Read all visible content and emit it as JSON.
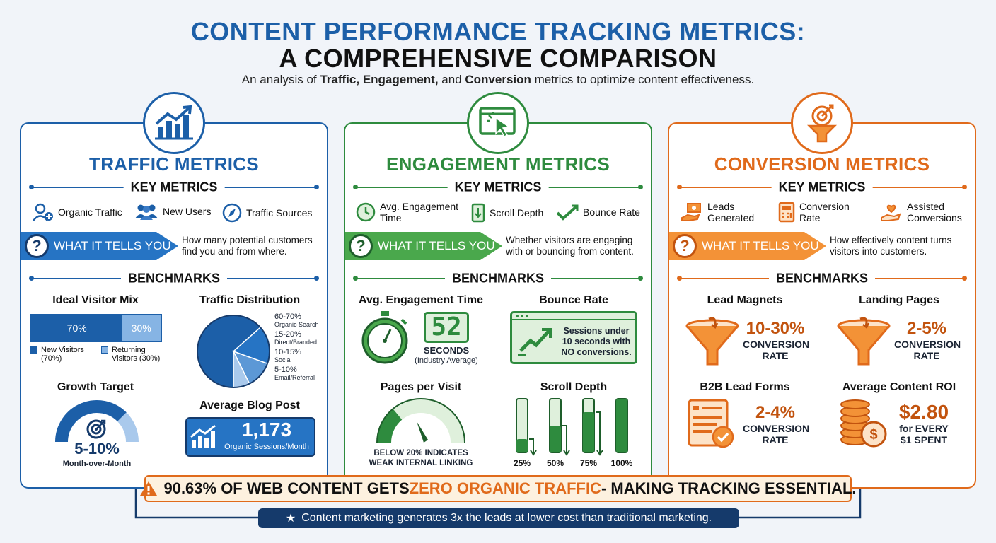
{
  "header": {
    "title_line1": "CONTENT PERFORMANCE TRACKING METRICS:",
    "title_line2": "A COMPREHENSIVE COMPARISON",
    "subtitle_pre": "An analysis of ",
    "subtitle_b1": "Traffic,",
    "subtitle_b2": "Engagement,",
    "subtitle_mid": " and ",
    "subtitle_b3": "Conversion",
    "subtitle_post": " metrics to optimize content effectiveness."
  },
  "colors": {
    "blue": "#1c5fa8",
    "green": "#2e8b3e",
    "orange": "#e06a1b",
    "navy": "#153a6b"
  },
  "traffic": {
    "title": "TRAFFIC METRICS",
    "key_metrics_label": "KEY METRICS",
    "metrics": [
      "Organic Traffic",
      "New Users",
      "Traffic Sources"
    ],
    "icons": [
      "user-plus-icon",
      "users-icon",
      "compass-icon"
    ],
    "what_label": "WHAT IT TELLS YOU",
    "what_text": "How many potential customers find you and from where.",
    "benchmarks_label": "BENCHMARKS",
    "visitor_mix": {
      "title": "Ideal Visitor Mix",
      "new_value": "70%",
      "returning_value": "30%",
      "new_fraction": 0.7,
      "legend_new": "New Visitors (70%)",
      "legend_returning": "Returning Visitors (30%)"
    },
    "distribution": {
      "title": "Traffic Distribution",
      "slices": [
        {
          "pct": "60-70%",
          "label": "Organic Search",
          "value": 65
        },
        {
          "pct": "15-20%",
          "label": "Direct/Branded",
          "value": 17.5
        },
        {
          "pct": "10-15%",
          "label": "Social",
          "value": 12.5
        },
        {
          "pct": "5-10%",
          "label": "Email/Referral",
          "value": 7.5
        }
      ]
    },
    "growth": {
      "title": "Growth Target",
      "value": "5-10%",
      "caption": "Month-over-Month",
      "fill_fraction": 0.75
    },
    "blog": {
      "title": "Average Blog Post",
      "value": "1,173",
      "caption": "Organic Sessions/Month"
    }
  },
  "engagement": {
    "title": "ENGAGEMENT METRICS",
    "key_metrics_label": "KEY METRICS",
    "metrics": [
      "Avg. Engagement Time",
      "Scroll Depth",
      "Bounce Rate"
    ],
    "icons": [
      "clock-icon",
      "scroll-icon",
      "check-trend-icon"
    ],
    "what_label": "WHAT IT TELLS YOU",
    "what_text": "Whether visitors are engaging with or bouncing from content.",
    "benchmarks_label": "BENCHMARKS",
    "eng_time": {
      "title": "Avg. Engagement Time",
      "value": "52",
      "unit": "SECONDS",
      "caption": "(Industry Average)"
    },
    "bounce": {
      "title": "Bounce Rate",
      "text": "Sessions under 10 seconds with NO conversions."
    },
    "pages": {
      "title": "Pages per Visit",
      "caption_line1": "BELOW 20% INDICATES",
      "caption_line2": "WEAK INTERNAL LINKING"
    },
    "scroll": {
      "title": "Scroll Depth",
      "bars": [
        {
          "label": "25%",
          "value": 0.25
        },
        {
          "label": "50%",
          "value": 0.5
        },
        {
          "label": "75%",
          "value": 0.75
        },
        {
          "label": "100%",
          "value": 1.0
        }
      ]
    }
  },
  "conversion": {
    "title": "CONVERSION METRICS",
    "key_metrics_label": "KEY METRICS",
    "metrics": [
      "Leads Generated",
      "Conversion Rate",
      "Assisted Conversions"
    ],
    "icons": [
      "hand-money-icon",
      "calculator-icon",
      "heart-hand-icon"
    ],
    "what_label": "WHAT IT TELLS YOU",
    "what_text": "How effectively content turns visitors into customers.",
    "benchmarks_label": "BENCHMARKS",
    "lead_magnets": {
      "title": "Lead Magnets",
      "value": "10-30%",
      "caption": "CONVERSION RATE"
    },
    "landing": {
      "title": "Landing Pages",
      "value": "2-5%",
      "caption": "CONVERSION RATE"
    },
    "b2b": {
      "title": "B2B Lead Forms",
      "value": "2-4%",
      "caption": "CONVERSION RATE"
    },
    "roi": {
      "title": "Average Content ROI",
      "value": "$2.80",
      "caption_line1": "for EVERY",
      "caption_line2": "$1 SPENT"
    }
  },
  "footer": {
    "warn_a": "90.63% OF WEB CONTENT GETS ",
    "warn_b": "ZERO ORGANIC TRAFFIC",
    "warn_c": " - MAKING TRACKING ESSENTIAL.",
    "bottom": "Content marketing generates 3x the leads at lower cost than traditional marketing."
  }
}
